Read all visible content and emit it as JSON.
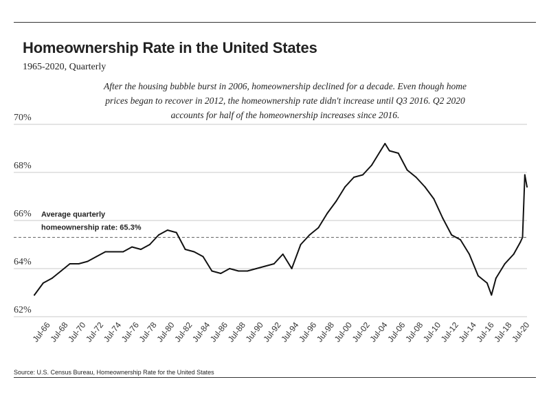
{
  "header": {
    "title": "Homeownership Rate in the United States",
    "subtitle": "1965-2020, Quarterly",
    "annotation": "After the housing bubble burst in 2006, homeownership declined for a decade. Even though home prices began to recover in 2012, the homeownership rate didn't increase until Q3 2016. Q2 2020 accounts for half of the homeownership increases since 2016."
  },
  "footer": {
    "source": "Source:  U.S. Census Bureau, Homeownership Rate for the United States"
  },
  "chart_data": {
    "type": "line",
    "title": "Homeownership Rate in the United States",
    "xlabel": "",
    "ylabel": "",
    "ylim": [
      62,
      70
    ],
    "yticks": [
      62,
      64,
      66,
      68,
      70
    ],
    "ytick_labels": [
      "62%",
      "64%",
      "66%",
      "68%",
      "70%"
    ],
    "grid": true,
    "xrange": [
      1965.0,
      2020.5
    ],
    "xticks": [
      1966.5,
      1968.5,
      1970.5,
      1972.5,
      1974.5,
      1976.5,
      1978.5,
      1980.5,
      1982.5,
      1984.5,
      1986.5,
      1988.5,
      1990.5,
      1992.5,
      1994.5,
      1996.5,
      1998.5,
      2000.5,
      2002.5,
      2004.5,
      2006.5,
      2008.5,
      2010.5,
      2012.5,
      2014.5,
      2016.5,
      2018.5,
      2020.5
    ],
    "xtick_labels": [
      "Jul-66",
      "Jul-68",
      "Jul-70",
      "Jul-72",
      "Jul-74",
      "Jul-76",
      "Jul-78",
      "Jul-80",
      "Jul-82",
      "Jul-84",
      "Jul-86",
      "Jul-88",
      "Jul-90",
      "Jul-92",
      "Jul-94",
      "Jul-96",
      "Jul-98",
      "Jul-00",
      "Jul-02",
      "Jul-04",
      "Jul-06",
      "Jul-08",
      "Jul-10",
      "Jul-12",
      "Jul-14",
      "Jul-16",
      "Jul-18",
      "Jul-20"
    ],
    "reference_line": {
      "value": 65.3,
      "label_line1": "Average quarterly",
      "label_line2": "homeownership rate: 65.3%"
    },
    "series": [
      {
        "name": "Homeownership Rate",
        "x": [
          1965.0,
          1966.0,
          1967.0,
          1968.0,
          1969.0,
          1970.0,
          1971.0,
          1972.0,
          1973.0,
          1974.0,
          1975.0,
          1976.0,
          1977.0,
          1978.0,
          1979.0,
          1980.0,
          1981.0,
          1982.0,
          1983.0,
          1984.0,
          1985.0,
          1986.0,
          1987.0,
          1988.0,
          1989.0,
          1990.0,
          1991.0,
          1992.0,
          1993.0,
          1994.0,
          1995.0,
          1996.0,
          1997.0,
          1998.0,
          1999.0,
          2000.0,
          2001.0,
          2002.0,
          2003.0,
          2004.0,
          2004.5,
          2005.0,
          2006.0,
          2007.0,
          2008.0,
          2009.0,
          2010.0,
          2011.0,
          2012.0,
          2013.0,
          2014.0,
          2015.0,
          2016.0,
          2016.5,
          2017.0,
          2018.0,
          2019.0,
          2019.75,
          2020.0,
          2020.25,
          2020.5
        ],
        "values": [
          62.9,
          63.4,
          63.6,
          63.9,
          64.2,
          64.2,
          64.3,
          64.5,
          64.7,
          64.7,
          64.7,
          64.9,
          64.8,
          65.0,
          65.4,
          65.6,
          65.5,
          64.8,
          64.7,
          64.5,
          63.9,
          63.8,
          64.0,
          63.9,
          63.9,
          64.0,
          64.1,
          64.2,
          64.6,
          64.0,
          65.0,
          65.4,
          65.7,
          66.3,
          66.8,
          67.4,
          67.8,
          67.9,
          68.3,
          68.9,
          69.2,
          68.9,
          68.8,
          68.1,
          67.8,
          67.4,
          66.9,
          66.1,
          65.4,
          65.2,
          64.6,
          63.7,
          63.4,
          62.9,
          63.6,
          64.2,
          64.6,
          65.1,
          65.3,
          67.9,
          67.4
        ]
      }
    ]
  }
}
